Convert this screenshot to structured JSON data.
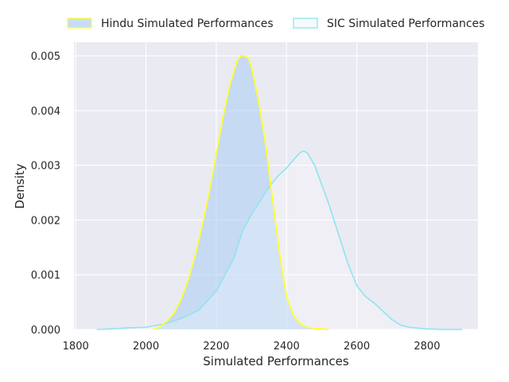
{
  "chart_data": {
    "type": "area",
    "title": "",
    "xlabel": "Simulated Performances",
    "ylabel": "Density",
    "xlim": [
      1795,
      2945
    ],
    "ylim": [
      0,
      0.00525
    ],
    "xticks": [
      1800,
      2000,
      2200,
      2400,
      2600,
      2800
    ],
    "xtick_labels": [
      "1800",
      "2000",
      "2200",
      "2400",
      "2600",
      "2800"
    ],
    "yticks": [
      0,
      0.001,
      0.002,
      0.003,
      0.004,
      0.005
    ],
    "ytick_labels": [
      "0.000",
      "0.001",
      "0.002",
      "0.003",
      "0.004",
      "0.005"
    ],
    "grid": true,
    "legend_position": "top",
    "series": [
      {
        "name": "Hindu Simulated Performances",
        "edge_color": "#ffff33",
        "fill_color": "#a1c9f4",
        "x": [
          2020,
          2040,
          2060,
          2080,
          2100,
          2120,
          2140,
          2160,
          2180,
          2200,
          2220,
          2240,
          2260,
          2270,
          2280,
          2290,
          2300,
          2320,
          2340,
          2360,
          2380,
          2400,
          2420,
          2440,
          2460,
          2480,
          2500,
          2520
        ],
        "y": [
          0.0,
          5e-05,
          0.00015,
          0.0003,
          0.00055,
          0.0009,
          0.00135,
          0.0019,
          0.0025,
          0.0032,
          0.0039,
          0.0045,
          0.00492,
          0.005,
          0.005,
          0.00497,
          0.0048,
          0.0042,
          0.0034,
          0.0024,
          0.0014,
          0.0006,
          0.00025,
          0.0001,
          4e-05,
          2e-05,
          1e-05,
          0.0
        ]
      },
      {
        "name": "SIC Simulated Performances",
        "edge_color": "#8de5f0",
        "fill_color": "#ffffff",
        "x": [
          1860,
          1900,
          1950,
          2000,
          2050,
          2100,
          2150,
          2200,
          2250,
          2275,
          2300,
          2325,
          2350,
          2375,
          2400,
          2420,
          2440,
          2450,
          2460,
          2480,
          2500,
          2520,
          2550,
          2575,
          2600,
          2625,
          2650,
          2675,
          2700,
          2725,
          2750,
          2800,
          2850,
          2900
        ],
        "y": [
          0.0,
          1e-05,
          3e-05,
          4e-05,
          0.0001,
          0.0002,
          0.00035,
          0.0007,
          0.0013,
          0.0018,
          0.0021,
          0.00235,
          0.0026,
          0.0028,
          0.00295,
          0.0031,
          0.00324,
          0.00326,
          0.00322,
          0.003,
          0.00265,
          0.0023,
          0.0017,
          0.0012,
          0.0008,
          0.0006,
          0.00048,
          0.00033,
          0.00018,
          8e-05,
          4e-05,
          1e-05,
          0.0,
          0.0
        ]
      }
    ]
  }
}
